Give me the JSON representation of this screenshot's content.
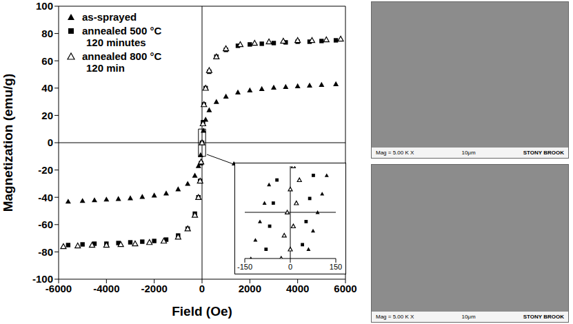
{
  "chart_data": [
    {
      "type": "scatter",
      "xlabel": "Field (Oe)",
      "ylabel": "Magnetization (emu/g)",
      "xlim": [
        -6000,
        6000
      ],
      "xticks": [
        -6000,
        -4000,
        -2000,
        0,
        2000,
        4000,
        6000
      ],
      "ylim": [
        -100,
        100
      ],
      "yticks": [
        -100,
        -80,
        -60,
        -40,
        -20,
        0,
        20,
        40,
        60,
        80,
        100
      ],
      "grid": false,
      "legend": "upper left",
      "series": [
        {
          "name": "as-sprayed",
          "color": "#000000",
          "marker": "triangle",
          "x": [
            -5600,
            -5000,
            -4500,
            -4000,
            -3500,
            -3000,
            -2500,
            -2000,
            -1500,
            -1000,
            -600,
            -300,
            -150,
            -60,
            0,
            60,
            150,
            300,
            600,
            1000,
            1500,
            2000,
            2500,
            3000,
            3500,
            4000,
            4500,
            5000,
            5600
          ],
          "values": [
            -43,
            -42.5,
            -42,
            -41.5,
            -41,
            -40.5,
            -39.5,
            -38.5,
            -37,
            -34,
            -30,
            -24,
            -17,
            -9,
            0,
            9,
            17,
            24,
            30,
            34,
            37,
            38.5,
            39.5,
            40.5,
            41,
            41.5,
            42,
            42.5,
            43
          ]
        },
        {
          "name": "annealed 500 °C\n120 minutes",
          "color": "#000000",
          "marker": "square",
          "x": [
            -5600,
            -5000,
            -4500,
            -4000,
            -3500,
            -3000,
            -2500,
            -2000,
            -1500,
            -1000,
            -600,
            -300,
            -150,
            -80,
            -40,
            0,
            40,
            80,
            150,
            300,
            600,
            1000,
            1500,
            2000,
            2500,
            3000,
            3500,
            4000,
            4500,
            5000,
            5600
          ],
          "values": [
            -75,
            -74.5,
            -74,
            -74,
            -73.5,
            -73,
            -72.5,
            -72,
            -71,
            -68,
            -63,
            -52,
            -40,
            -28,
            -15,
            0,
            15,
            28,
            40,
            52,
            63,
            68,
            71,
            72,
            72.5,
            73,
            73.5,
            74,
            74,
            74.5,
            75
          ]
        },
        {
          "name": "annealed 800 °C\n120 min",
          "color": "#000000",
          "marker": "open triangle",
          "x": [
            -5800,
            -5200,
            -4600,
            -4000,
            -3400,
            -2800,
            -2200,
            -1600,
            -1000,
            -600,
            -300,
            -150,
            -80,
            -40,
            0,
            40,
            80,
            150,
            300,
            600,
            1000,
            1600,
            2200,
            2800,
            3400,
            4000,
            4600,
            5200,
            5800
          ],
          "values": [
            -76,
            -75.5,
            -75,
            -75,
            -74.5,
            -74,
            -73,
            -72,
            -69,
            -63,
            -53,
            -40,
            -28,
            -14,
            0,
            14,
            28,
            40,
            53,
            63,
            69,
            72,
            73,
            74,
            74.5,
            75,
            75,
            75.5,
            76
          ]
        }
      ]
    },
    {
      "type": "scatter",
      "xlim": [
        -150,
        150
      ],
      "xticks": [
        -150,
        0,
        150
      ],
      "ylim": [
        -10,
        10
      ],
      "tick_labels": "x",
      "grid": false,
      "series": [
        {
          "color": "#000000",
          "marker": "triangle",
          "x": [
            -130,
            -115,
            -100,
            -85,
            -70,
            60,
            75,
            90,
            105,
            120
          ],
          "values": [
            -10,
            -6,
            -2,
            2,
            6,
            -8,
            -4,
            0,
            4,
            8
          ]
        },
        {
          "color": "#000000",
          "marker": "square",
          "x": [
            -80,
            -68,
            -56,
            -44,
            40,
            52,
            64,
            76
          ],
          "values": [
            -8,
            -3,
            2,
            7,
            -7,
            -2,
            3,
            8
          ]
        },
        {
          "color": "#000000",
          "marker": "open triangle",
          "x": [
            -30,
            -20,
            -10,
            0,
            10,
            0,
            10,
            20,
            30
          ],
          "values": [
            -10,
            -5,
            0,
            5,
            10,
            -8,
            -3,
            2,
            7
          ]
        }
      ]
    }
  ],
  "images": [
    {
      "footer": [
        "Mag = 5.00 K X",
        "10μm",
        "STONY BROOK"
      ]
    },
    {
      "footer": [
        "Mag = 5.00 K X",
        "10μm",
        "STONY BROOK"
      ]
    }
  ]
}
